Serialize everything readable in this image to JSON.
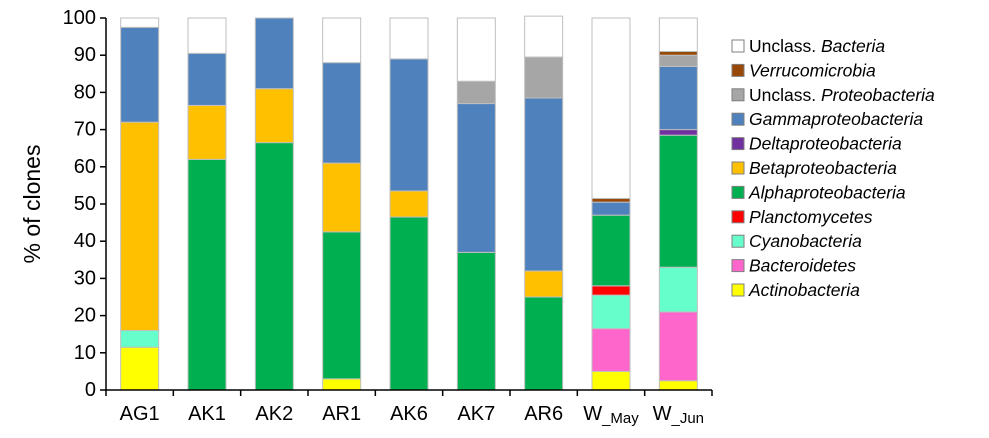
{
  "chart_data": {
    "type": "bar",
    "stacked": true,
    "title": "",
    "xlabel": "",
    "ylabel": "% of clones",
    "ylim": [
      0,
      100
    ],
    "yticks": [
      0,
      10,
      20,
      30,
      40,
      50,
      60,
      70,
      80,
      90,
      100
    ],
    "grid": false,
    "legend_position": "right",
    "categories": [
      "AG1",
      "AK1",
      "AK2",
      "AR1",
      "AK6",
      "AK7",
      "AR6",
      "W_May",
      "W_Jun"
    ],
    "category_labels": [
      {
        "main": "AG1",
        "sub": ""
      },
      {
        "main": "AK1",
        "sub": ""
      },
      {
        "main": "AK2",
        "sub": ""
      },
      {
        "main": "AR1",
        "sub": ""
      },
      {
        "main": "AK6",
        "sub": ""
      },
      {
        "main": "AK7",
        "sub": ""
      },
      {
        "main": "AR6",
        "sub": ""
      },
      {
        "main": "W",
        "sub": "_May"
      },
      {
        "main": "W",
        "sub": "_Jun"
      }
    ],
    "series": [
      {
        "name": "Actinobacteria",
        "legend_prefix": "",
        "legend_italic": "Actinobacteria",
        "color": "#FFFF00",
        "values": [
          11.5,
          0,
          0,
          3,
          0,
          0,
          0,
          5,
          2.5
        ]
      },
      {
        "name": "Bacteroidetes",
        "legend_prefix": "",
        "legend_italic": "Bacteroidetes",
        "color": "#FF66CC",
        "values": [
          0,
          0,
          0,
          0,
          0,
          0,
          0,
          11.5,
          18.5
        ]
      },
      {
        "name": "Cyanobacteria",
        "legend_prefix": "",
        "legend_italic": "Cyanobacteria",
        "color": "#66FFCC",
        "values": [
          4.5,
          0,
          0,
          0,
          0,
          0,
          0,
          9,
          12
        ]
      },
      {
        "name": "Planctomycetes",
        "legend_prefix": "",
        "legend_italic": "Planctomycetes",
        "color": "#FF0000",
        "values": [
          0,
          0,
          0,
          0,
          0,
          0,
          0,
          2.5,
          0
        ]
      },
      {
        "name": "Alphaproteobacteria",
        "legend_prefix": "",
        "legend_italic": "Alphaproteobacteria",
        "color": "#00B050",
        "values": [
          0,
          62,
          66.5,
          39.5,
          46.5,
          37,
          25,
          19,
          35.5
        ]
      },
      {
        "name": "Betaproteobacteria",
        "legend_prefix": "",
        "legend_italic": "Betaproteobacteria",
        "color": "#FFC000",
        "values": [
          56,
          14.5,
          14.5,
          18.5,
          7,
          0,
          7,
          0,
          0
        ]
      },
      {
        "name": "Deltaproteobacteria",
        "legend_prefix": "",
        "legend_italic": "Deltaproteobacteria",
        "color": "#7030A0",
        "values": [
          0,
          0,
          0,
          0,
          0,
          0,
          0,
          0,
          1.5
        ]
      },
      {
        "name": "Gammaproteobacteria",
        "legend_prefix": "",
        "legend_italic": "Gammaproteobacteria",
        "color": "#4F81BD",
        "values": [
          25.5,
          14,
          19,
          27,
          35.5,
          40,
          46.5,
          3.5,
          17
        ]
      },
      {
        "name": "Unclass. Proteobacteria",
        "legend_prefix": "Unclass. ",
        "legend_italic": "Proteobacteria",
        "color": "#A6A6A6",
        "values": [
          0,
          0,
          0,
          0,
          0,
          6,
          11,
          0,
          3
        ]
      },
      {
        "name": "Verrucomicrobia",
        "legend_prefix": "",
        "legend_italic": "Verrucomicrobia",
        "color": "#984807",
        "values": [
          0,
          0,
          0,
          0,
          0,
          0,
          0,
          1,
          1
        ]
      },
      {
        "name": "Unclass. Bacteria",
        "legend_prefix": "Unclass. ",
        "legend_italic": "Bacteria",
        "color": "#FFFFFF",
        "values": [
          2.5,
          9.5,
          0,
          12,
          11,
          17,
          11,
          48.5,
          9
        ]
      }
    ]
  }
}
